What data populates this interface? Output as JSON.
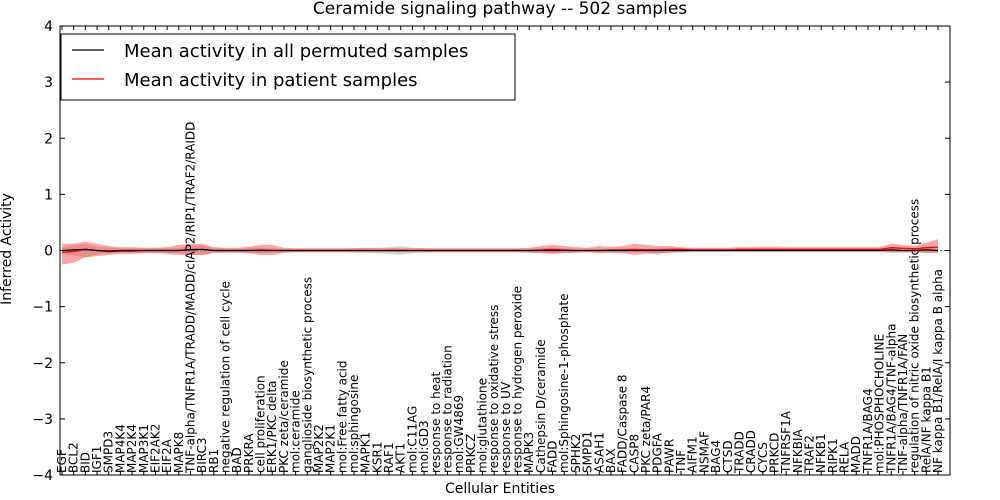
{
  "chart_data": {
    "type": "line",
    "title": "Ceramide signaling pathway -- 502 samples",
    "xlabel": "Cellular Entities",
    "ylabel": "Inferred Activity",
    "ylim": [
      -4,
      4
    ],
    "yticks": [
      -4,
      -3,
      -2,
      -1,
      0,
      1,
      2,
      3,
      4
    ],
    "grid": false,
    "legend_position": "top-left",
    "categories": [
      "EGF",
      "BCL2",
      "BID",
      "IGF1",
      "SMPD3",
      "MAP4K4",
      "MAP2K4",
      "MAP3K1",
      "EIF2AK2",
      "EIF2A",
      "MAPK8",
      "TNF-alpha/TNFR1A/TRADD/MADD/cIAP2/RIP1/TRAF2/RAIDD",
      "BIRC3",
      "RB1",
      "negative regulation of cell cycle",
      "BAD",
      "PRKRA",
      "cell proliferation",
      "ERK1/PKC delta",
      "PKC zeta/ceramide",
      "mol:ceramide",
      "ganglioside biosynthetic process",
      "MAP2K2",
      "MAP2K1",
      "mol:Free fatty acid",
      "mol:sphingosine",
      "MAPK1",
      "KSR1",
      "RAF1",
      "AKT1",
      "mol:C11AG",
      "mol:GD3",
      "response to heat",
      "response to radiation",
      "mol:GW4869",
      "PRKCZ",
      "mol:glutathione",
      "response to oxidative stress",
      "response to UV",
      "response to hydrogen peroxide",
      "MAPK3",
      "Cathepsin D/ceramide",
      "FADD",
      "mol:Sphingosine-1-phosphate",
      "SPHK2",
      "SMPD1",
      "ASAH1",
      "BAX",
      "FADD/Caspase 8",
      "CASP8",
      "PKC zeta/PAR4",
      "PDGFA",
      "PAWR",
      "TNF",
      "AIFM1",
      "NSMAF",
      "BAG4",
      "CTSD",
      "TRADD",
      "CRADD",
      "CYCS",
      "PRKCD",
      "TNFRSF1A",
      "NFKBIA",
      "TRAF2",
      "NFKB1",
      "RIPK1",
      "RELA",
      "MADD",
      "TNFR1A/BAG4",
      "mol:PHOSPHOCHOLINE",
      "TNFR1A/BAG4/TNF-alpha",
      "TNF-alpha/TNFR1A/FAN",
      "regulation of nitric oxide biosynthetic process",
      "RelA/NF kappa B1",
      "NF kappa B1/RelA/I kappa B alpha"
    ],
    "series": [
      {
        "name": "Mean activity in all permuted samples",
        "color": "#000000",
        "values": [
          0.0,
          0.01,
          0.02,
          0.0,
          -0.01,
          0.0,
          0.0,
          0.0,
          0.0,
          0.0,
          0.0,
          0.01,
          0.02,
          0.0,
          0.0,
          0.0,
          0.0,
          0.0,
          0.0,
          0.0,
          0.0,
          0.0,
          0.0,
          0.0,
          0.0,
          0.0,
          0.0,
          0.0,
          0.0,
          0.0,
          0.0,
          0.0,
          0.0,
          0.0,
          0.0,
          0.0,
          0.0,
          0.0,
          0.0,
          0.0,
          0.0,
          0.0,
          0.0,
          0.0,
          0.0,
          0.0,
          0.0,
          0.0,
          0.0,
          0.0,
          0.0,
          0.0,
          0.0,
          0.0,
          0.0,
          0.0,
          0.0,
          0.0,
          0.0,
          0.0,
          0.0,
          0.0,
          0.0,
          0.0,
          0.0,
          0.0,
          0.0,
          0.0,
          0.0,
          0.0,
          0.0,
          0.01,
          0.0,
          0.0,
          0.01,
          0.0
        ],
        "band_upper": [
          0.06,
          0.09,
          0.12,
          0.07,
          0.05,
          0.04,
          0.04,
          0.04,
          0.04,
          0.04,
          0.05,
          0.08,
          0.09,
          0.04,
          0.03,
          0.03,
          0.04,
          0.05,
          0.04,
          0.03,
          0.03,
          0.03,
          0.03,
          0.03,
          0.03,
          0.04,
          0.05,
          0.05,
          0.06,
          0.08,
          0.05,
          0.04,
          0.03,
          0.03,
          0.03,
          0.03,
          0.03,
          0.03,
          0.03,
          0.03,
          0.03,
          0.04,
          0.05,
          0.04,
          0.03,
          0.03,
          0.03,
          0.03,
          0.03,
          0.03,
          0.03,
          0.03,
          0.03,
          0.03,
          0.03,
          0.03,
          0.03,
          0.03,
          0.03,
          0.03,
          0.03,
          0.03,
          0.03,
          0.03,
          0.03,
          0.03,
          0.03,
          0.03,
          0.03,
          0.03,
          0.03,
          0.05,
          0.04,
          0.03,
          0.05,
          0.04
        ],
        "band_lower": [
          -0.06,
          -0.09,
          -0.12,
          -0.07,
          -0.05,
          -0.04,
          -0.04,
          -0.04,
          -0.04,
          -0.04,
          -0.05,
          -0.08,
          -0.09,
          -0.04,
          -0.03,
          -0.03,
          -0.04,
          -0.05,
          -0.04,
          -0.03,
          -0.03,
          -0.03,
          -0.03,
          -0.03,
          -0.03,
          -0.04,
          -0.05,
          -0.05,
          -0.06,
          -0.08,
          -0.05,
          -0.04,
          -0.03,
          -0.03,
          -0.03,
          -0.03,
          -0.03,
          -0.03,
          -0.03,
          -0.03,
          -0.03,
          -0.04,
          -0.05,
          -0.04,
          -0.03,
          -0.03,
          -0.03,
          -0.03,
          -0.03,
          -0.03,
          -0.03,
          -0.08,
          -0.03,
          -0.03,
          -0.03,
          -0.03,
          -0.03,
          -0.03,
          -0.03,
          -0.03,
          -0.03,
          -0.03,
          -0.03,
          -0.03,
          -0.03,
          -0.03,
          -0.03,
          -0.03,
          -0.03,
          -0.03,
          -0.03,
          -0.05,
          -0.04,
          -0.03,
          -0.05,
          -0.04
        ]
      },
      {
        "name": "Mean activity in patient samples",
        "color": "#ff0000",
        "values": [
          -0.03,
          -0.02,
          0.02,
          0.0,
          -0.02,
          -0.01,
          -0.01,
          0.0,
          0.0,
          0.0,
          0.0,
          0.02,
          0.02,
          0.0,
          0.0,
          0.0,
          0.0,
          0.01,
          0.0,
          0.0,
          0.0,
          0.0,
          0.0,
          0.0,
          0.0,
          0.0,
          0.0,
          0.0,
          0.0,
          0.0,
          0.0,
          0.0,
          0.0,
          0.0,
          0.0,
          0.0,
          0.0,
          0.0,
          0.0,
          0.0,
          0.0,
          0.01,
          0.02,
          0.01,
          0.0,
          0.0,
          0.0,
          0.01,
          0.01,
          0.02,
          0.01,
          0.01,
          0.02,
          0.02,
          0.01,
          0.01,
          0.01,
          0.01,
          0.02,
          0.02,
          0.02,
          0.02,
          0.02,
          0.02,
          0.02,
          0.02,
          0.02,
          0.02,
          0.02,
          0.02,
          0.02,
          0.05,
          0.04,
          0.03,
          0.05,
          0.06
        ],
        "band_upper": [
          0.12,
          0.12,
          0.16,
          0.12,
          0.08,
          0.06,
          0.06,
          0.05,
          0.05,
          0.06,
          0.1,
          0.12,
          0.12,
          0.06,
          0.05,
          0.05,
          0.07,
          0.1,
          0.1,
          0.05,
          0.04,
          0.04,
          0.04,
          0.04,
          0.04,
          0.04,
          0.04,
          0.04,
          0.04,
          0.04,
          0.04,
          0.04,
          0.04,
          0.04,
          0.04,
          0.04,
          0.04,
          0.04,
          0.04,
          0.04,
          0.05,
          0.08,
          0.1,
          0.08,
          0.06,
          0.05,
          0.08,
          0.06,
          0.08,
          0.12,
          0.1,
          0.08,
          0.08,
          0.06,
          0.05,
          0.05,
          0.05,
          0.05,
          0.06,
          0.06,
          0.07,
          0.07,
          0.06,
          0.06,
          0.06,
          0.06,
          0.06,
          0.06,
          0.06,
          0.06,
          0.06,
          0.12,
          0.1,
          0.08,
          0.14,
          0.2
        ],
        "band_lower": [
          -0.25,
          -0.22,
          -0.12,
          -0.1,
          -0.08,
          -0.06,
          -0.06,
          -0.05,
          -0.05,
          -0.06,
          -0.08,
          -0.08,
          -0.08,
          -0.04,
          -0.04,
          -0.04,
          -0.05,
          -0.08,
          -0.08,
          -0.04,
          -0.03,
          -0.03,
          -0.03,
          -0.03,
          -0.03,
          -0.03,
          -0.03,
          -0.03,
          -0.03,
          -0.03,
          -0.03,
          -0.03,
          -0.03,
          -0.03,
          -0.03,
          -0.03,
          -0.03,
          -0.03,
          -0.03,
          -0.03,
          -0.04,
          -0.05,
          -0.06,
          -0.05,
          -0.04,
          -0.03,
          -0.05,
          -0.04,
          -0.05,
          -0.08,
          -0.06,
          -0.05,
          -0.04,
          -0.03,
          -0.02,
          -0.02,
          -0.02,
          -0.02,
          -0.02,
          -0.02,
          -0.02,
          -0.02,
          -0.02,
          -0.02,
          -0.02,
          -0.02,
          -0.02,
          -0.02,
          -0.02,
          -0.02,
          -0.02,
          -0.03,
          -0.03,
          -0.03,
          -0.04,
          -0.05
        ]
      }
    ]
  }
}
